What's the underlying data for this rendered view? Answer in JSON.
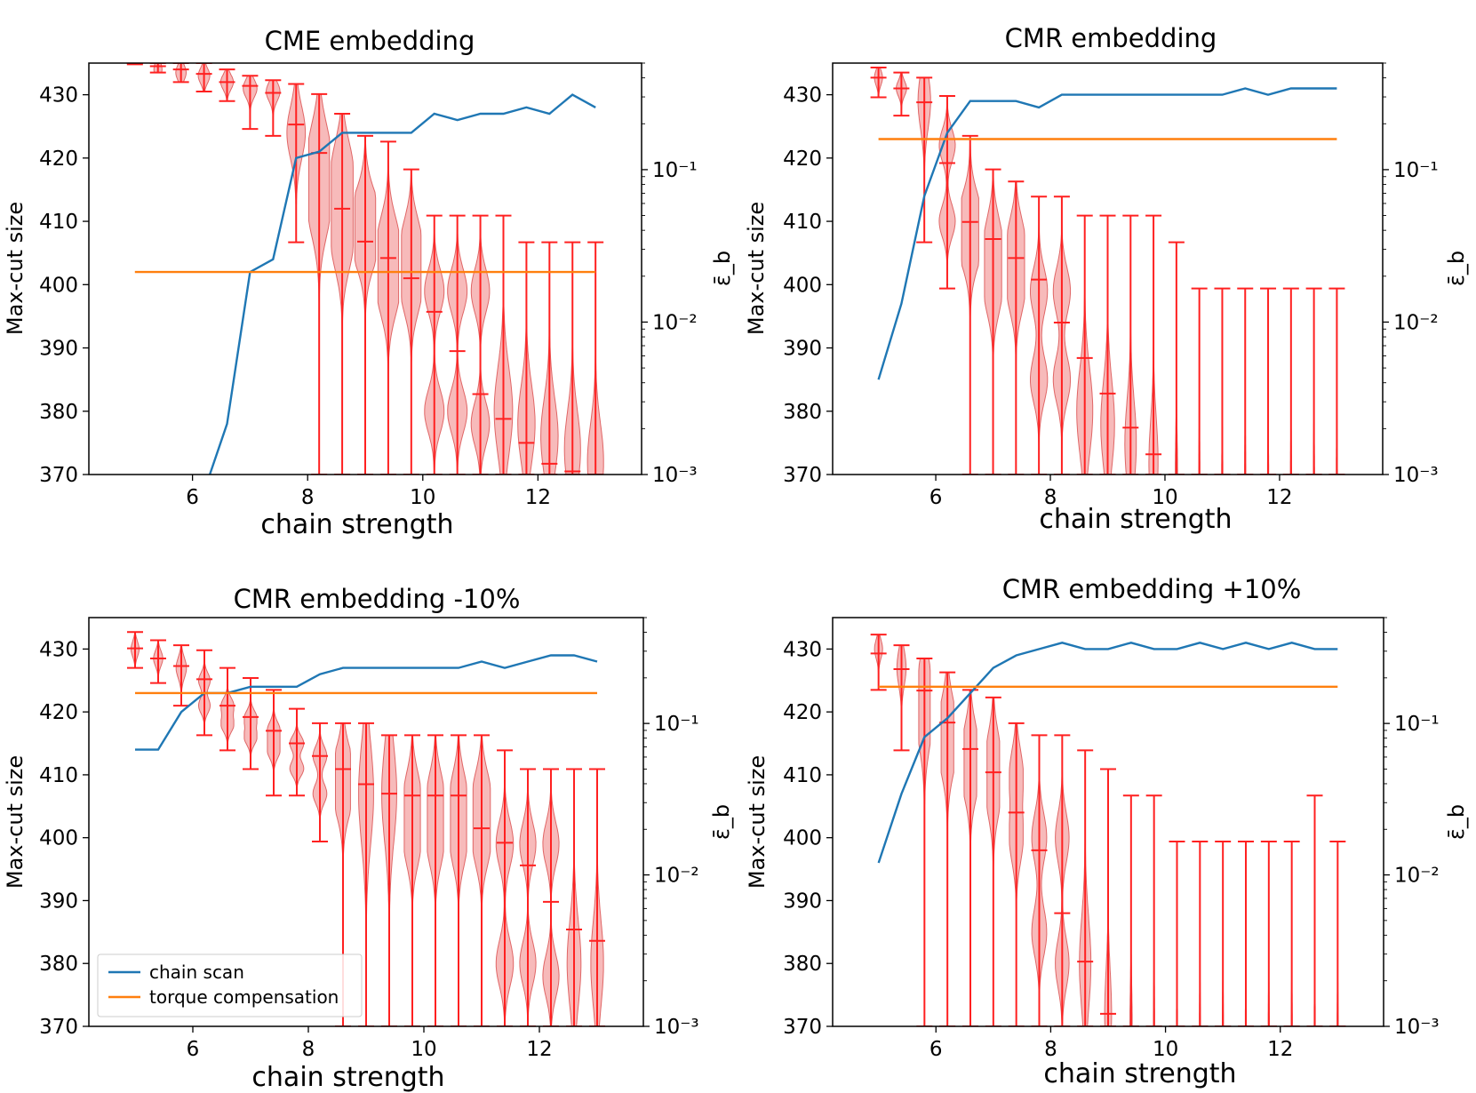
{
  "figure": {
    "series_names": [
      "chain scan",
      "torque compensation"
    ],
    "colors": {
      "chain_scan": "#1f77b4",
      "torque": "#ff7f0e",
      "violin_fill": "#f4a3a3",
      "violin_stroke": "#e06666",
      "errorbar": "#ff2020"
    }
  },
  "chart_data": [
    {
      "type": "line",
      "title": "CME embedding",
      "xlabel": "chain strength",
      "ylabel": "Max-cut size",
      "y2label": "ε̄_b",
      "xlim": [
        4.2,
        13.8
      ],
      "ylim": [
        370,
        435
      ],
      "y2lim": [
        0.001,
        0.5
      ],
      "y2scale": "log",
      "xticks": [
        6,
        8,
        10,
        12
      ],
      "yticks": [
        370,
        380,
        390,
        400,
        410,
        420,
        430
      ],
      "y2ticks": [
        0.001,
        0.01,
        0.1
      ],
      "y2ticklabels": [
        "10⁻³",
        "10⁻²",
        "10⁻¹"
      ],
      "legend": false,
      "series": [
        {
          "name": "chain scan",
          "x": [
            6.3,
            6.6,
            7.0,
            7.4,
            7.8,
            8.2,
            8.6,
            9.0,
            9.4,
            9.8,
            10.2,
            10.6,
            11.0,
            11.4,
            11.8,
            12.2,
            12.6,
            13.0
          ],
          "values": [
            370,
            378,
            402,
            404,
            420,
            421,
            424,
            424,
            424,
            424,
            427,
            426,
            427,
            427,
            428,
            427,
            430,
            428
          ]
        },
        {
          "name": "torque compensation",
          "x": [
            5.0,
            13.0
          ],
          "values": [
            402,
            402
          ]
        }
      ],
      "violins": {
        "x": [
          5.0,
          5.4,
          5.8,
          6.2,
          6.6,
          7.0,
          7.4,
          7.8,
          8.2,
          8.6,
          9.0,
          9.4,
          9.8,
          10.2,
          10.6,
          11.0,
          11.4,
          11.8,
          12.2,
          12.6,
          13.0
        ],
        "min": [
          435,
          433.5,
          432,
          430.5,
          429,
          424.6,
          423.5,
          406.7,
          370,
          370,
          370,
          370,
          370,
          370,
          370,
          370,
          370,
          370,
          370,
          370,
          370
        ],
        "max": [
          435,
          435,
          435,
          435,
          434,
          433,
          432.3,
          431.7,
          430.1,
          427,
          423.5,
          422.6,
          418.2,
          410.9,
          410.9,
          410.9,
          410.9,
          406.7,
          406.7,
          406.7,
          406.7
        ],
        "median": [
          434.8,
          434.5,
          434,
          433.3,
          432,
          431.4,
          430.3,
          425.3,
          420.8,
          412,
          406.8,
          404.2,
          401,
          395.7,
          389.5,
          382.7,
          378.8,
          375,
          371.7,
          370.5,
          370
        ],
        "modes": [
          [
            434.5
          ],
          [
            434
          ],
          [
            433.5
          ],
          [
            433
          ],
          [
            432
          ],
          [
            431
          ],
          [
            430.5
          ],
          [
            424
          ],
          [
            421,
            412
          ],
          [
            406.8,
            418
          ],
          [
            406.8,
            411
          ],
          [
            406.8,
            399
          ],
          [
            406.8,
            399
          ],
          [
            399,
            380
          ],
          [
            399,
            380
          ],
          [
            399,
            378
          ],
          [
            380
          ],
          [
            378
          ],
          [
            376
          ],
          [
            374
          ],
          [
            372
          ]
        ],
        "width": [
          0.3,
          0.35,
          0.45,
          0.5,
          0.55,
          0.6,
          0.6,
          0.8,
          0.9,
          0.95,
          0.9,
          0.9,
          0.85,
          0.85,
          0.85,
          0.8,
          0.8,
          0.75,
          0.75,
          0.7,
          0.7
        ]
      }
    },
    {
      "type": "line",
      "title": "CMR embedding",
      "xlabel": "chain strength",
      "ylabel": "Max-cut size",
      "y2label": "ε̄_b",
      "xlim": [
        4.2,
        13.8
      ],
      "ylim": [
        370,
        435
      ],
      "y2lim": [
        0.001,
        0.5
      ],
      "y2scale": "log",
      "xticks": [
        6,
        8,
        10,
        12
      ],
      "yticks": [
        370,
        380,
        390,
        400,
        410,
        420,
        430
      ],
      "y2ticks": [
        0.001,
        0.01,
        0.1
      ],
      "y2ticklabels": [
        "10⁻³",
        "10⁻²",
        "10⁻¹"
      ],
      "legend": false,
      "series": [
        {
          "name": "chain scan",
          "x": [
            5.0,
            5.4,
            5.8,
            6.2,
            6.6,
            7.0,
            7.4,
            7.8,
            8.2,
            8.6,
            9.0,
            9.4,
            9.8,
            10.2,
            10.6,
            11.0,
            11.4,
            11.8,
            12.2,
            12.6,
            13.0
          ],
          "values": [
            385,
            397,
            414,
            424,
            429,
            429,
            429,
            428,
            430,
            430,
            430,
            430,
            430,
            430,
            430,
            430,
            431,
            430,
            431,
            431,
            431
          ]
        },
        {
          "name": "torque compensation",
          "x": [
            5.0,
            13.0
          ],
          "values": [
            423,
            423
          ]
        }
      ],
      "violins": {
        "x": [
          5.0,
          5.4,
          5.8,
          6.2,
          6.6,
          7.0,
          7.4,
          7.8,
          8.2,
          8.6,
          9.0,
          9.4,
          9.8,
          10.2,
          10.6,
          11.0,
          11.4,
          11.8,
          12.2,
          12.6,
          13.0
        ],
        "min": [
          429.6,
          426.7,
          406.7,
          399.4,
          370,
          370,
          370,
          370,
          370,
          370,
          370,
          370,
          370,
          370,
          370,
          370,
          370,
          370,
          370,
          370,
          370
        ],
        "max": [
          434.3,
          433.5,
          432.7,
          429.8,
          423.5,
          418.2,
          416.3,
          413.9,
          413.9,
          410.9,
          410.9,
          410.9,
          410.9,
          406.7,
          399.4,
          399.4,
          399.4,
          399.4,
          399.4,
          399.4,
          399.4
        ],
        "median": [
          432.7,
          431,
          428.8,
          419.2,
          409.9,
          407.2,
          404.2,
          400.8,
          394,
          388.4,
          382.8,
          377.4,
          373.2,
          370,
          370,
          370,
          370,
          370,
          370,
          370,
          370
        ],
        "modes": [
          [
            432.7
          ],
          [
            431
          ],
          [
            429
          ],
          [
            422,
            410
          ],
          [
            410,
            407
          ],
          [
            407,
            399
          ],
          [
            407,
            399
          ],
          [
            399,
            385
          ],
          [
            399,
            385
          ],
          [
            380
          ],
          [
            378
          ],
          [
            375
          ],
          [
            372
          ],
          [
            370
          ],
          [
            370
          ],
          [
            370
          ],
          [
            370
          ],
          [
            370
          ],
          [
            370
          ],
          [
            370
          ],
          [
            370
          ]
        ],
        "width": [
          0.35,
          0.45,
          0.55,
          0.7,
          0.75,
          0.75,
          0.75,
          0.75,
          0.75,
          0.7,
          0.6,
          0.5,
          0.4,
          0.1,
          0.05,
          0.05,
          0.05,
          0.05,
          0.05,
          0.05,
          0.05
        ]
      }
    },
    {
      "type": "line",
      "title": "CMR embedding -10%",
      "xlabel": "chain strength",
      "ylabel": "Max-cut size",
      "y2label": "ε̄_b",
      "xlim": [
        4.2,
        13.8
      ],
      "ylim": [
        370,
        435
      ],
      "y2lim": [
        0.001,
        0.5
      ],
      "y2scale": "log",
      "xticks": [
        6,
        8,
        10,
        12
      ],
      "yticks": [
        370,
        380,
        390,
        400,
        410,
        420,
        430
      ],
      "y2ticks": [
        0.001,
        0.01,
        0.1
      ],
      "y2ticklabels": [
        "10⁻³",
        "10⁻²",
        "10⁻¹"
      ],
      "legend": true,
      "legend_position": "lower-left",
      "series": [
        {
          "name": "chain scan",
          "x": [
            5.0,
            5.4,
            5.8,
            6.2,
            6.6,
            7.0,
            7.4,
            7.8,
            8.2,
            8.6,
            9.0,
            9.4,
            9.8,
            10.2,
            10.6,
            11.0,
            11.4,
            11.8,
            12.2,
            12.6,
            13.0
          ],
          "values": [
            414,
            414,
            420,
            423,
            423,
            424,
            424,
            424,
            426,
            427,
            427,
            427,
            427,
            427,
            427,
            428,
            427,
            428,
            429,
            429,
            428
          ]
        },
        {
          "name": "torque compensation",
          "x": [
            5.0,
            13.0
          ],
          "values": [
            423,
            423
          ]
        }
      ],
      "violins": {
        "x": [
          5.0,
          5.4,
          5.8,
          6.2,
          6.6,
          7.0,
          7.4,
          7.8,
          8.2,
          8.6,
          9.0,
          9.4,
          9.8,
          10.2,
          10.6,
          11.0,
          11.4,
          11.8,
          12.2,
          12.6,
          13.0
        ],
        "min": [
          427,
          424.6,
          421,
          416.3,
          413.9,
          410.9,
          406.7,
          406.7,
          399.4,
          370,
          370,
          370,
          370,
          370,
          370,
          370,
          370,
          370,
          370,
          370,
          370
        ],
        "max": [
          432.7,
          431.4,
          430.6,
          429.8,
          427,
          425.4,
          423.5,
          420.5,
          418.2,
          418.2,
          418.2,
          416.3,
          416.3,
          416.3,
          416.3,
          416.3,
          413.9,
          410.9,
          410.9,
          410.9,
          410.9
        ],
        "median": [
          430.1,
          428.5,
          427.3,
          425.2,
          421,
          419.2,
          417,
          415,
          413,
          410.9,
          408.5,
          407,
          406.7,
          406.7,
          406.7,
          401.5,
          399.2,
          395.6,
          389.8,
          385.4,
          383.6
        ],
        "modes": [
          [
            430
          ],
          [
            428.5
          ],
          [
            427
          ],
          [
            425,
            421
          ],
          [
            421,
            418
          ],
          [
            419,
            416
          ],
          [
            417,
            414
          ],
          [
            415,
            411
          ],
          [
            413,
            407
          ],
          [
            411,
            407
          ],
          [
            407
          ],
          [
            407
          ],
          [
            407,
            399
          ],
          [
            407,
            399
          ],
          [
            407,
            399
          ],
          [
            407,
            399
          ],
          [
            399,
            380
          ],
          [
            399,
            380
          ],
          [
            399,
            378
          ],
          [
            380
          ],
          [
            380
          ]
        ],
        "width": [
          0.35,
          0.4,
          0.45,
          0.5,
          0.55,
          0.55,
          0.55,
          0.6,
          0.6,
          0.65,
          0.65,
          0.65,
          0.7,
          0.7,
          0.7,
          0.75,
          0.75,
          0.7,
          0.7,
          0.6,
          0.55
        ]
      }
    },
    {
      "type": "line",
      "title": "CMR embedding +10%",
      "xlabel": "chain strength",
      "ylabel": "Max-cut size",
      "y2label": "ε̄_b",
      "xlim": [
        4.2,
        13.8
      ],
      "ylim": [
        370,
        435
      ],
      "y2lim": [
        0.001,
        0.5
      ],
      "y2scale": "log",
      "xticks": [
        6,
        8,
        10,
        12
      ],
      "yticks": [
        370,
        380,
        390,
        400,
        410,
        420,
        430
      ],
      "y2ticks": [
        0.001,
        0.01,
        0.1
      ],
      "y2ticklabels": [
        "10⁻³",
        "10⁻²",
        "10⁻¹"
      ],
      "legend": false,
      "series": [
        {
          "name": "chain scan",
          "x": [
            5.0,
            5.4,
            5.8,
            6.2,
            6.6,
            7.0,
            7.4,
            7.8,
            8.2,
            8.6,
            9.0,
            9.4,
            9.8,
            10.2,
            10.6,
            11.0,
            11.4,
            11.8,
            12.2,
            12.6,
            13.0
          ],
          "values": [
            396,
            407,
            416,
            419,
            423,
            427,
            429,
            430,
            431,
            430,
            430,
            431,
            430,
            430,
            431,
            430,
            431,
            430,
            431,
            430,
            430
          ]
        },
        {
          "name": "torque compensation",
          "x": [
            5.0,
            13.0
          ],
          "values": [
            424,
            424
          ]
        }
      ],
      "violins": {
        "x": [
          5.0,
          5.4,
          5.8,
          6.2,
          6.6,
          7.0,
          7.4,
          7.8,
          8.2,
          8.6,
          9.0,
          9.4,
          9.8,
          10.2,
          10.6,
          11.0,
          11.4,
          11.8,
          12.2,
          12.6,
          13.0
        ],
        "min": [
          423.5,
          413.9,
          370,
          370,
          370,
          370,
          370,
          370,
          370,
          370,
          370,
          370,
          370,
          370,
          370,
          370,
          370,
          370,
          370,
          370,
          370
        ],
        "max": [
          432.3,
          430.6,
          428.5,
          426.3,
          423.5,
          422.3,
          418.2,
          416.3,
          416.3,
          413.9,
          410.9,
          406.7,
          406.7,
          399.4,
          399.4,
          399.4,
          399.4,
          399.4,
          399.4,
          406.7,
          399.4
        ],
        "median": [
          429.3,
          426.8,
          423.4,
          418.3,
          414.1,
          410.4,
          404,
          398,
          388,
          380.3,
          372,
          370,
          370,
          370,
          370,
          370,
          370,
          370,
          370,
          370,
          370
        ],
        "modes": [
          [
            430
          ],
          [
            427
          ],
          [
            424,
            418
          ],
          [
            418,
            414
          ],
          [
            414,
            410
          ],
          [
            413,
            407
          ],
          [
            410,
            400
          ],
          [
            400,
            385
          ],
          [
            400,
            380
          ],
          [
            380
          ],
          [
            372
          ],
          [
            370
          ],
          [
            370
          ],
          [
            370
          ],
          [
            370
          ],
          [
            370
          ],
          [
            370
          ],
          [
            370
          ],
          [
            370
          ],
          [
            370
          ],
          [
            370
          ]
        ],
        "width": [
          0.35,
          0.4,
          0.5,
          0.55,
          0.55,
          0.55,
          0.6,
          0.65,
          0.6,
          0.5,
          0.3,
          0.1,
          0.05,
          0.05,
          0.05,
          0.05,
          0.05,
          0.05,
          0.05,
          0.05,
          0.05
        ]
      }
    }
  ]
}
